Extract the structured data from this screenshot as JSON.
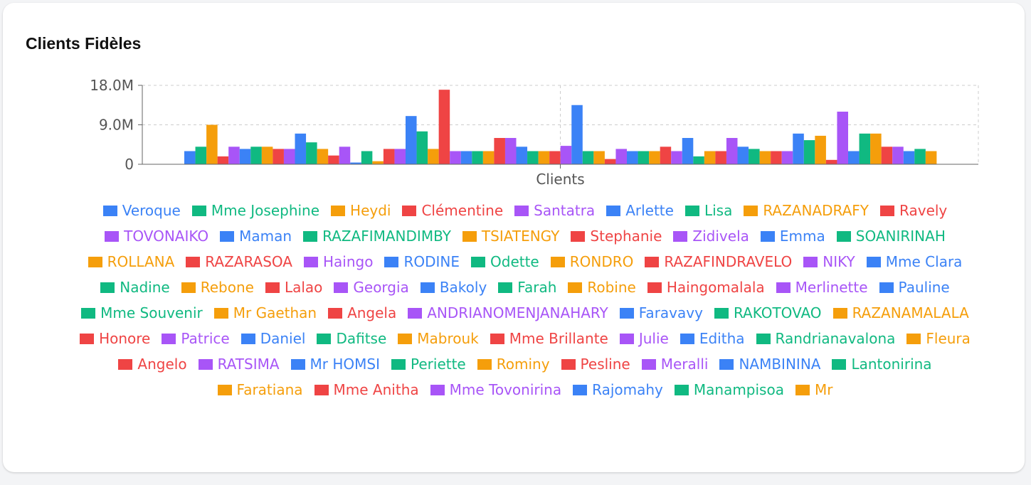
{
  "card": {
    "title": "Clients Fidèles"
  },
  "chart_data": {
    "type": "bar",
    "title": "Clients Fidèles",
    "xlabel": "",
    "ylabel": "",
    "categories": [
      "Clients"
    ],
    "x_tick_labels": [
      "Clients"
    ],
    "y_ticks": [
      0,
      9000000,
      18000000
    ],
    "y_tick_labels": [
      "0",
      "9.0M",
      "18.0M"
    ],
    "ylim": [
      0,
      18000000
    ],
    "grid": true,
    "legend_position": "bottom",
    "palette": [
      "#3b82f6",
      "#10b981",
      "#f59e0b",
      "#ef4444",
      "#a855f7"
    ],
    "series": [
      {
        "name": "Veroque",
        "values": [
          3000000
        ]
      },
      {
        "name": "Mme Josephine",
        "values": [
          4000000
        ]
      },
      {
        "name": "Heydi",
        "values": [
          9000000
        ]
      },
      {
        "name": "Clémentine",
        "values": [
          1800000
        ]
      },
      {
        "name": "Santatra",
        "values": [
          4000000
        ]
      },
      {
        "name": "Arlette",
        "values": [
          3500000
        ]
      },
      {
        "name": "Lisa",
        "values": [
          4000000
        ]
      },
      {
        "name": "RAZANADRAFY",
        "values": [
          4000000
        ]
      },
      {
        "name": "Ravely",
        "values": [
          3500000
        ]
      },
      {
        "name": "TOVONAIKO",
        "values": [
          3500000
        ]
      },
      {
        "name": "Maman",
        "values": [
          7000000
        ]
      },
      {
        "name": "RAZAFIMANDIMBY",
        "values": [
          5000000
        ]
      },
      {
        "name": "TSIATENGY",
        "values": [
          3500000
        ]
      },
      {
        "name": "Stephanie",
        "values": [
          2000000
        ]
      },
      {
        "name": "Zidivela",
        "values": [
          4000000
        ]
      },
      {
        "name": "Emma",
        "values": [
          400000
        ]
      },
      {
        "name": "SOANIRINAH",
        "values": [
          3000000
        ]
      },
      {
        "name": "ROLLANA",
        "values": [
          700000
        ]
      },
      {
        "name": "RAZARASOA",
        "values": [
          3500000
        ]
      },
      {
        "name": "Haingo",
        "values": [
          3500000
        ]
      },
      {
        "name": "RODINE",
        "values": [
          11000000
        ]
      },
      {
        "name": "Odette",
        "values": [
          7500000
        ]
      },
      {
        "name": "RONDRO",
        "values": [
          3500000
        ]
      },
      {
        "name": "RAZAFINDRAVELO",
        "values": [
          17000000
        ]
      },
      {
        "name": "NIKY",
        "values": [
          3000000
        ]
      },
      {
        "name": "Mme Clara",
        "values": [
          3000000
        ]
      },
      {
        "name": "Nadine",
        "values": [
          3000000
        ]
      },
      {
        "name": "Rebone",
        "values": [
          3000000
        ]
      },
      {
        "name": "Lalao",
        "values": [
          6000000
        ]
      },
      {
        "name": "Georgia",
        "values": [
          6000000
        ]
      },
      {
        "name": "Bakoly",
        "values": [
          4000000
        ]
      },
      {
        "name": "Farah",
        "values": [
          3000000
        ]
      },
      {
        "name": "Robine",
        "values": [
          3000000
        ]
      },
      {
        "name": "Haingomalala",
        "values": [
          3000000
        ]
      },
      {
        "name": "Merlinette",
        "values": [
          4200000
        ]
      },
      {
        "name": "Pauline",
        "values": [
          13500000
        ]
      },
      {
        "name": "Mme Souvenir",
        "values": [
          3000000
        ]
      },
      {
        "name": "Mr Gaethan",
        "values": [
          3000000
        ]
      },
      {
        "name": "Angela",
        "values": [
          1200000
        ]
      },
      {
        "name": "ANDRIANOMENJANAHARY",
        "values": [
          3500000
        ]
      },
      {
        "name": "Faravavy",
        "values": [
          3000000
        ]
      },
      {
        "name": "RAKOTOVAO",
        "values": [
          3000000
        ]
      },
      {
        "name": "RAZANAMALALA",
        "values": [
          3000000
        ]
      },
      {
        "name": "Honore",
        "values": [
          4000000
        ]
      },
      {
        "name": "Patrice",
        "values": [
          3000000
        ]
      },
      {
        "name": "Daniel",
        "values": [
          6000000
        ]
      },
      {
        "name": "Dafitse",
        "values": [
          1800000
        ]
      },
      {
        "name": "Mabrouk",
        "values": [
          3000000
        ]
      },
      {
        "name": "Mme Brillante",
        "values": [
          3000000
        ]
      },
      {
        "name": "Julie",
        "values": [
          6000000
        ]
      },
      {
        "name": "Editha",
        "values": [
          4000000
        ]
      },
      {
        "name": "Randrianavalona",
        "values": [
          3500000
        ]
      },
      {
        "name": "Fleura",
        "values": [
          3000000
        ]
      },
      {
        "name": "Angelo",
        "values": [
          3000000
        ]
      },
      {
        "name": "RATSIMA",
        "values": [
          3000000
        ]
      },
      {
        "name": "Mr HOMSI",
        "values": [
          7000000
        ]
      },
      {
        "name": "Periette",
        "values": [
          5500000
        ]
      },
      {
        "name": "Rominy",
        "values": [
          6500000
        ]
      },
      {
        "name": "Pesline",
        "values": [
          1000000
        ]
      },
      {
        "name": "Meralli",
        "values": [
          12000000
        ]
      },
      {
        "name": "NAMBININA",
        "values": [
          3000000
        ]
      },
      {
        "name": "Lantonirina",
        "values": [
          7000000
        ]
      },
      {
        "name": "Faratiana",
        "values": [
          7000000
        ]
      },
      {
        "name": "Mme Anitha",
        "values": [
          4000000
        ]
      },
      {
        "name": "Mme Tovonirina",
        "values": [
          4000000
        ]
      },
      {
        "name": "Rajomahy",
        "values": [
          3000000
        ]
      },
      {
        "name": "Manampisoa",
        "values": [
          3500000
        ]
      },
      {
        "name": "Mr",
        "values": [
          3000000
        ]
      }
    ]
  }
}
